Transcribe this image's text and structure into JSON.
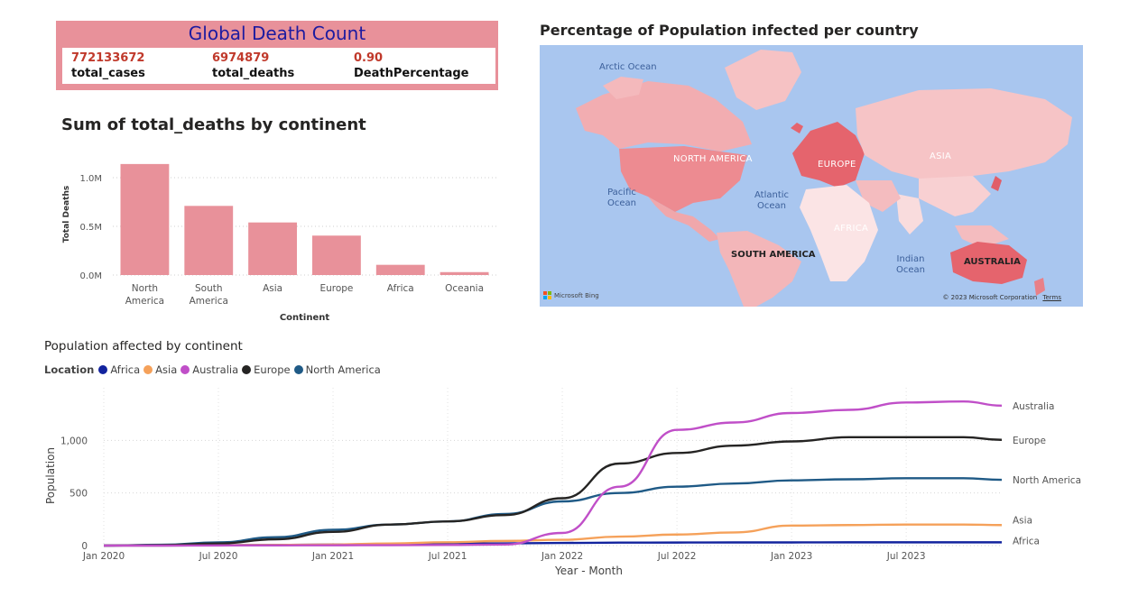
{
  "kpi": {
    "title": "Global Death Count",
    "values": [
      "772133672",
      "6974879",
      "0.90"
    ],
    "labels": [
      "total_cases",
      "total_deaths",
      "DeathPercentage"
    ]
  },
  "bar_title": "Sum of total_deaths by continent",
  "map": {
    "title": "Percentage of Population infected per country",
    "ocean_labels": [
      "Arctic Ocean",
      "Pacific Ocean",
      "Atlantic Ocean",
      "Indian Ocean"
    ],
    "continent_labels": [
      "NORTH AMERICA",
      "EUROPE",
      "ASIA",
      "AFRICA",
      "SOUTH AMERICA",
      "AUSTRALIA"
    ],
    "logo_text": "Microsoft Bing",
    "copyright": "© 2023 Microsoft Corporation",
    "terms": "Terms"
  },
  "line_title": "Population affected by continent",
  "colors": {
    "bar": "#e8919a",
    "kpi_header": "#e8919a",
    "kpi_title_text": "#1d1ba0",
    "kpi_value_text": "#c0392b",
    "map_ocean": "#a9c6ef"
  },
  "chart_data": [
    {
      "type": "bar",
      "title": "Sum of total_deaths by continent",
      "xlabel": "Continent",
      "ylabel": "Total Deaths",
      "categories": [
        "North America",
        "South America",
        "Asia",
        "Europe",
        "Africa",
        "Oceania"
      ],
      "values": [
        1140000,
        710000,
        540000,
        405000,
        105000,
        30000
      ],
      "ylim": [
        0,
        1250000
      ],
      "yticks": [
        0,
        500000,
        1000000
      ],
      "ytick_labels": [
        "0.0M",
        "0.5M",
        "1.0M"
      ],
      "grid": true
    },
    {
      "type": "line",
      "title": "Population affected by continent",
      "xlabel": "Year - Month",
      "ylabel": "Population",
      "legend_title": "Location",
      "legend_position": "top-left",
      "x": [
        "Jan 2020",
        "Apr 2020",
        "Jul 2020",
        "Oct 2020",
        "Jan 2021",
        "Apr 2021",
        "Jul 2021",
        "Oct 2021",
        "Jan 2022",
        "Apr 2022",
        "Jul 2022",
        "Oct 2022",
        "Jan 2023",
        "Apr 2023",
        "Jul 2023",
        "Oct 2023",
        "Dec 2023"
      ],
      "xticks": [
        "Jan 2020",
        "Jul 2020",
        "Jan 2021",
        "Jul 2021",
        "Jan 2022",
        "Jul 2022",
        "Jan 2023",
        "Jul 2023"
      ],
      "ylim": [
        0,
        1500
      ],
      "yticks": [
        0,
        500,
        1000
      ],
      "ytick_labels": [
        "0",
        "500",
        "1,000"
      ],
      "grid": true,
      "series": [
        {
          "name": "Africa",
          "color": "#12239e",
          "values": [
            0,
            1,
            3,
            6,
            10,
            14,
            18,
            21,
            25,
            28,
            29,
            30,
            30,
            31,
            31,
            31,
            31
          ]
        },
        {
          "name": "Asia",
          "color": "#f5a15a",
          "values": [
            0,
            1,
            3,
            6,
            10,
            20,
            32,
            44,
            55,
            85,
            105,
            125,
            190,
            195,
            200,
            200,
            195
          ]
        },
        {
          "name": "Australia",
          "color": "#c04fc8",
          "values": [
            0,
            0,
            1,
            2,
            3,
            4,
            6,
            10,
            120,
            560,
            1100,
            1170,
            1260,
            1290,
            1360,
            1370,
            1330
          ]
        },
        {
          "name": "Europe",
          "color": "#252423",
          "values": [
            0,
            5,
            20,
            60,
            130,
            200,
            230,
            290,
            450,
            780,
            880,
            950,
            990,
            1030,
            1030,
            1030,
            1005
          ]
        },
        {
          "name": "North America",
          "color": "#1f5a86",
          "values": [
            0,
            8,
            30,
            80,
            150,
            200,
            230,
            300,
            420,
            500,
            560,
            590,
            620,
            630,
            640,
            640,
            625
          ]
        }
      ]
    }
  ]
}
